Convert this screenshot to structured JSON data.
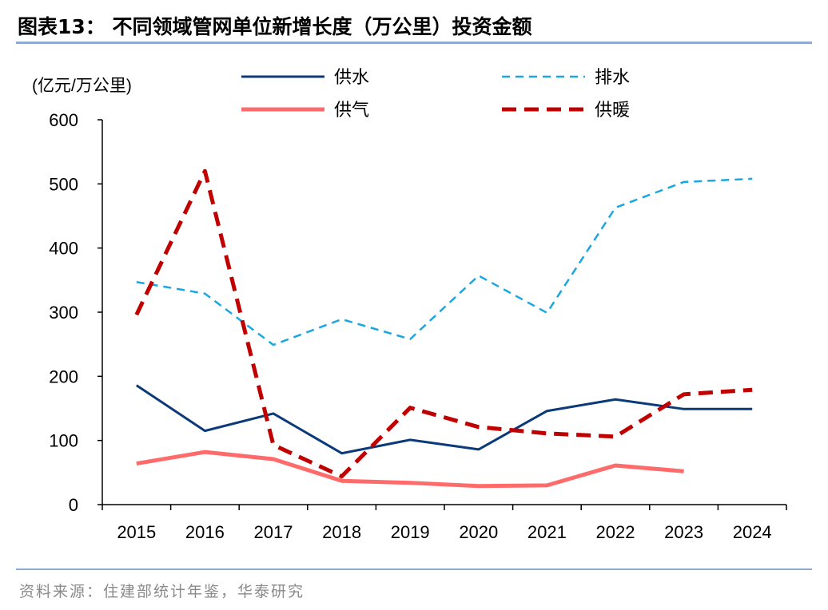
{
  "title": "图表13：  不同领域管网单位新增长度（万公里）投资金额",
  "source": "资料来源：住建部统计年鉴，华泰研究",
  "chart_data": {
    "type": "line",
    "title": "不同领域管网单位新增长度（万公里）投资金额",
    "ylabel": "(亿元/万公里)",
    "xlabel": "",
    "ylim": [
      0,
      600
    ],
    "yticks": [
      "0",
      "100",
      "200",
      "300",
      "400",
      "500",
      "600"
    ],
    "categories": [
      "2015",
      "2016",
      "2017",
      "2018",
      "2019",
      "2020",
      "2021",
      "2022",
      "2023",
      "2024"
    ],
    "legend_position": "top",
    "grid": false,
    "series": [
      {
        "name": "供水",
        "color": "#0b3a7a",
        "dash": "solid",
        "values": [
          186,
          115,
          142,
          80,
          101,
          86,
          146,
          164,
          149,
          149
        ]
      },
      {
        "name": "排水",
        "color": "#1aa6e0",
        "dash": "dashed",
        "values": [
          347,
          329,
          249,
          289,
          258,
          357,
          299,
          463,
          503,
          508
        ]
      },
      {
        "name": "供气",
        "color": "#ff6b6b",
        "dash": "solid",
        "values": [
          64,
          82,
          71,
          37,
          34,
          29,
          30,
          61,
          52,
          null
        ]
      },
      {
        "name": "供暖",
        "color": "#c00000",
        "dash": "dashed",
        "values": [
          296,
          520,
          93,
          44,
          151,
          121,
          111,
          106,
          172,
          179
        ]
      }
    ]
  }
}
